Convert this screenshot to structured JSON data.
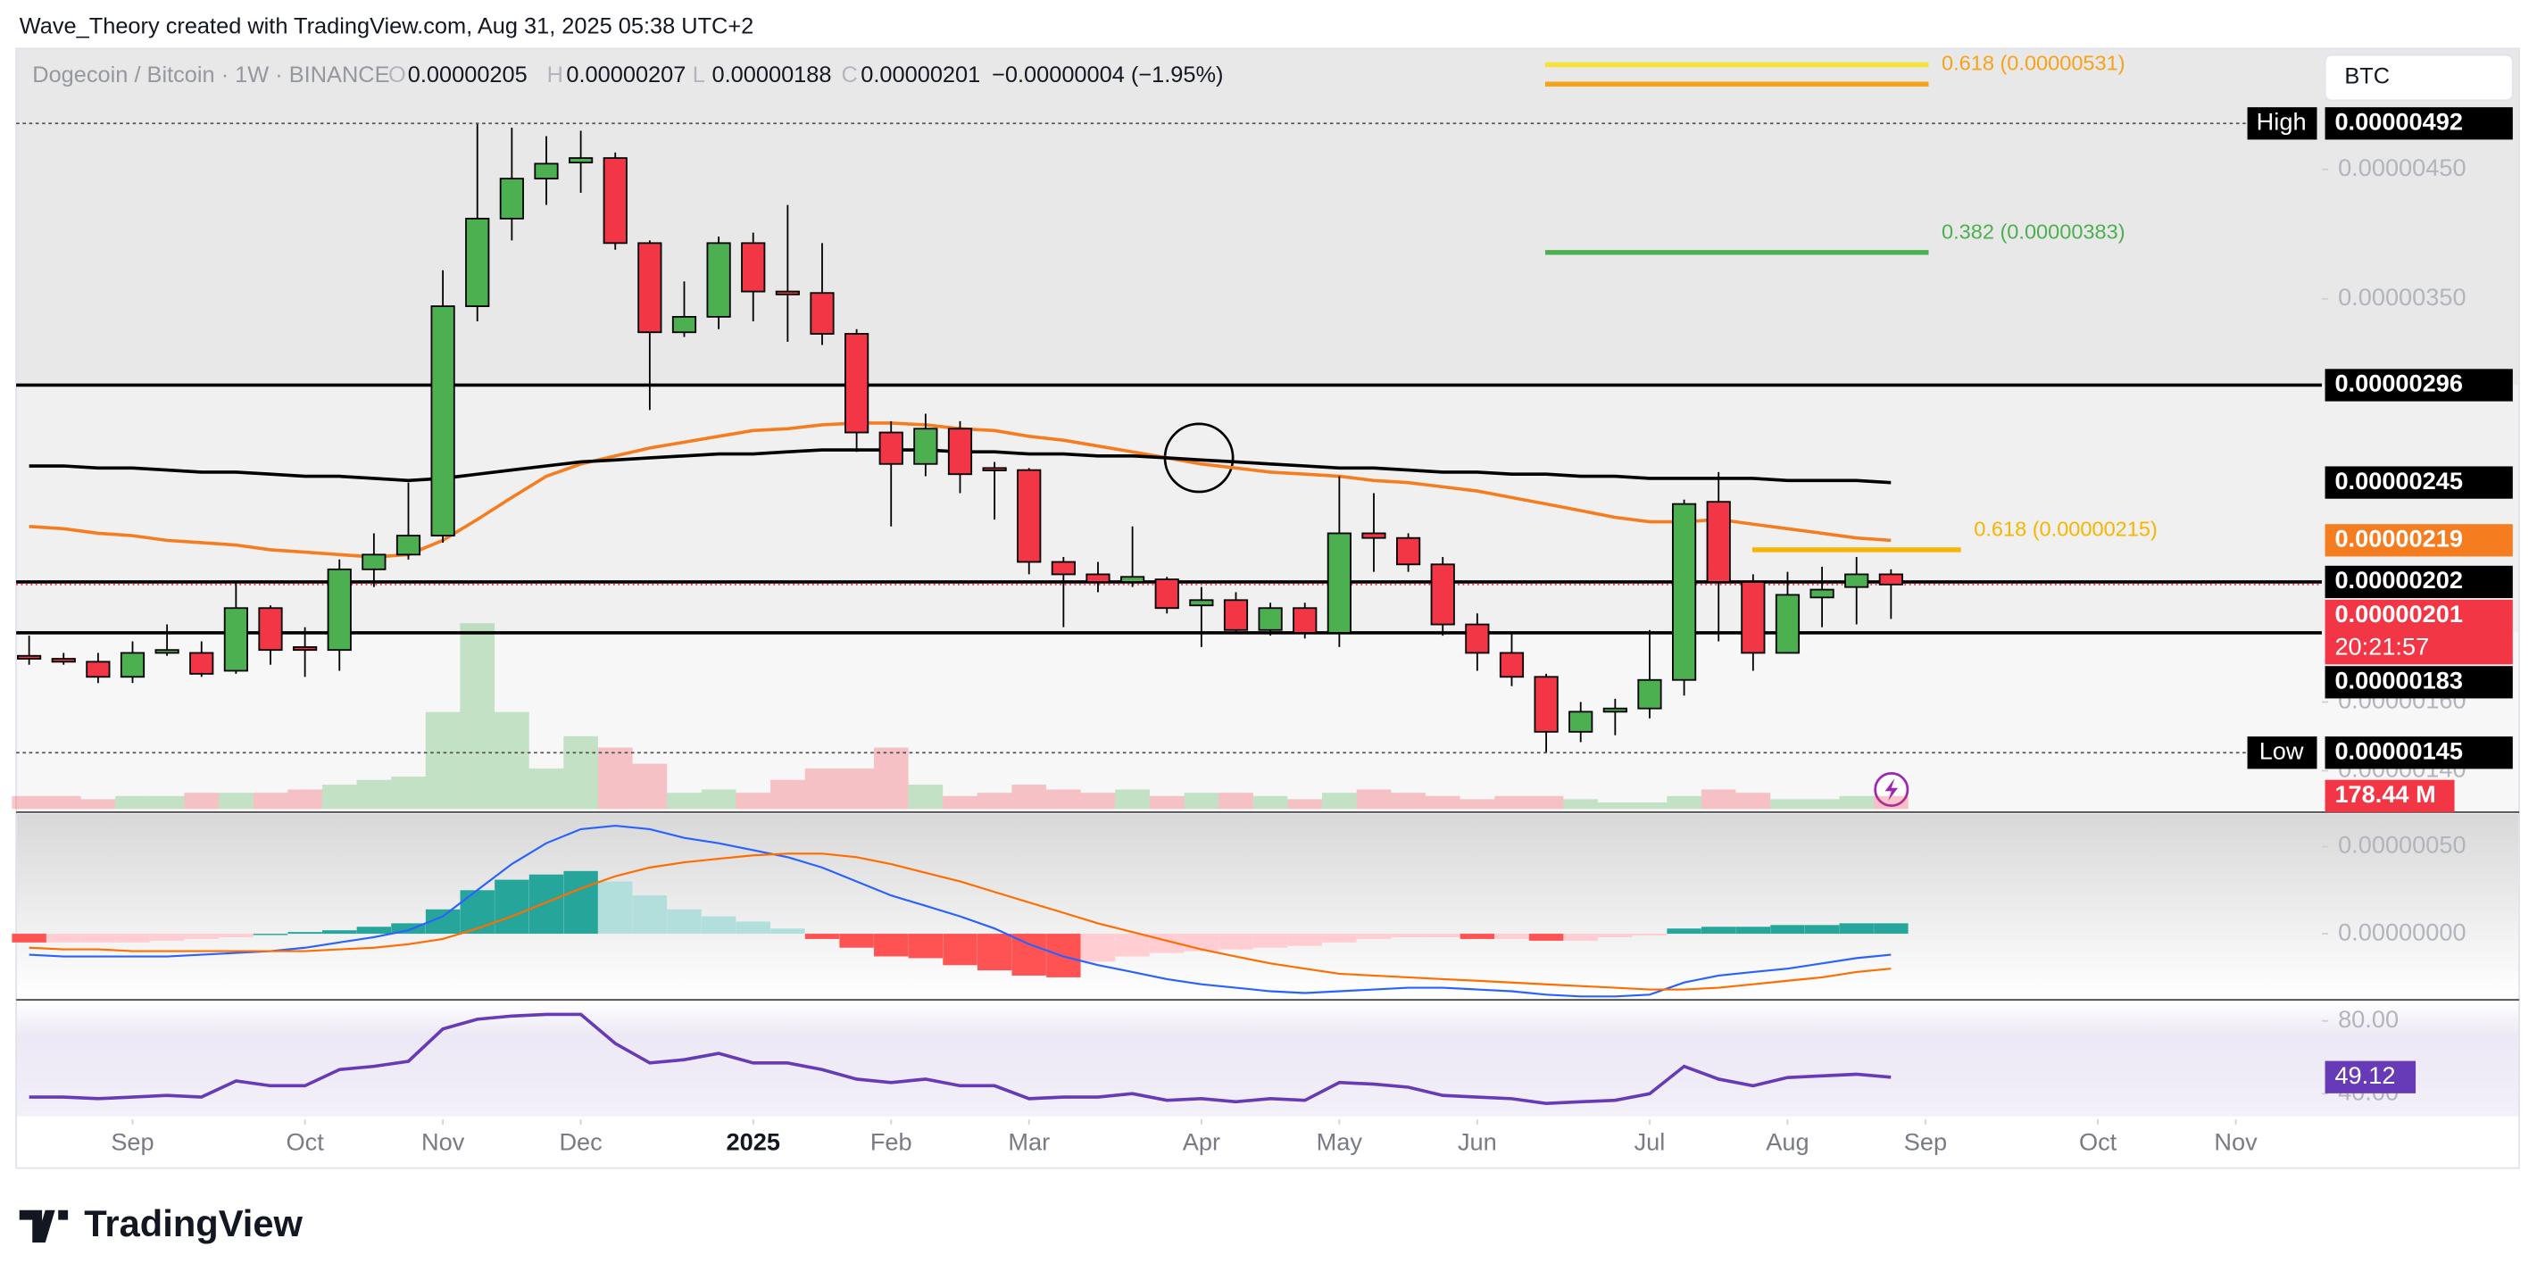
{
  "chart_data": {
    "type": "candlestick",
    "title": "Dogecoin / Bitcoin · 1W · BINANCE",
    "credit": "Wave_Theory created with TradingView.com, Aug 31, 2025 05:38 UTC+2",
    "legend_keys": [
      "O",
      "H",
      "L",
      "C"
    ],
    "change_label": "−0.00000004 (−1.95%)",
    "currency": "BTC",
    "watermark": "TradingView",
    "log_scale": true,
    "categories": [
      null,
      null,
      null,
      null,
      null,
      null,
      null,
      null,
      null,
      null,
      null,
      null,
      null,
      null,
      null,
      null,
      null,
      null,
      null,
      null,
      null,
      null,
      null,
      null,
      null,
      null,
      null,
      null,
      null,
      null,
      null,
      null,
      null,
      null,
      null,
      null,
      null,
      null,
      null,
      null,
      null,
      null,
      null,
      null,
      null,
      null,
      null,
      null,
      null,
      null,
      null,
      null,
      null,
      null,
      null
    ],
    "open": [
      1.75e-06,
      1.74e-06,
      1.73e-06,
      1.68e-06,
      1.76e-06,
      1.76e-06,
      1.7e-06,
      1.92e-06,
      1.78e-06,
      1.77e-06,
      2.07e-06,
      2.13e-06,
      2.21e-06,
      3.45e-06,
      4.09e-06,
      4.42e-06,
      4.56e-06,
      4.6e-06,
      3.9e-06,
      3.28e-06,
      3.38e-06,
      3.9e-06,
      3.55e-06,
      3.54e-06,
      3.27e-06,
      2.7e-06,
      2.54e-06,
      2.72e-06,
      2.52e-06,
      2.51e-06,
      2.1e-06,
      2.05e-06,
      2.02e-06,
      2.03e-06,
      1.93e-06,
      1.95e-06,
      1.84e-06,
      1.92e-06,
      1.83e-06,
      2.22e-06,
      2.2e-06,
      2.09e-06,
      1.86e-06,
      1.76e-06,
      1.68e-06,
      1.51e-06,
      1.57e-06,
      1.58e-06,
      1.67e-06,
      2.36e-06,
      2.02e-06,
      1.76e-06,
      1.96e-06,
      2e-06,
      2.05e-06
    ],
    "high": [
      1.82e-06,
      1.76e-06,
      1.76e-06,
      1.8e-06,
      1.86e-06,
      1.8e-06,
      2.02e-06,
      1.93e-06,
      1.85e-06,
      2.11e-06,
      2.22e-06,
      2.45e-06,
      3.7e-06,
      4.92e-06,
      4.88e-06,
      4.8e-06,
      4.85e-06,
      4.65e-06,
      3.92e-06,
      3.62e-06,
      3.95e-06,
      3.98e-06,
      4.2e-06,
      3.9e-06,
      3.3e-06,
      2.76e-06,
      2.8e-06,
      2.76e-06,
      2.55e-06,
      2.52e-06,
      2.12e-06,
      2.1e-06,
      2.25e-06,
      2.04e-06,
      2e-06,
      1.98e-06,
      1.94e-06,
      1.94e-06,
      2.48e-06,
      2.4e-06,
      2.22e-06,
      2.12e-06,
      1.9e-06,
      1.83e-06,
      1.69e-06,
      1.6e-06,
      1.61e-06,
      1.84e-06,
      2.37e-06,
      2.5e-06,
      2.05e-06,
      2.06e-06,
      2.08e-06,
      2.12e-06,
      2.07e-06
    ],
    "low": [
      1.72e-06,
      1.72e-06,
      1.66e-06,
      1.66e-06,
      1.75e-06,
      1.68e-06,
      1.69e-06,
      1.72e-06,
      1.68e-06,
      1.7e-06,
      2e-06,
      2.11e-06,
      2.18e-06,
      3.35e-06,
      3.92e-06,
      4.2e-06,
      4.3e-06,
      3.85e-06,
      2.82e-06,
      3.25e-06,
      3.3e-06,
      3.35e-06,
      3.22e-06,
      3.2e-06,
      2.6e-06,
      2.25e-06,
      2.48e-06,
      2.4e-06,
      2.28e-06,
      2.05e-06,
      1.85e-06,
      1.98e-06,
      2e-06,
      1.9e-06,
      1.78e-06,
      1.83e-06,
      1.82e-06,
      1.81e-06,
      1.78e-06,
      2.06e-06,
      2.06e-06,
      1.82e-06,
      1.7e-06,
      1.65e-06,
      1.45e-06,
      1.48e-06,
      1.5e-06,
      1.55e-06,
      1.62e-06,
      1.8e-06,
      1.7e-06,
      1.76e-06,
      1.85e-06,
      1.86e-06,
      1.88e-06
    ],
    "close": [
      1.74e-06,
      1.73e-06,
      1.68e-06,
      1.76e-06,
      1.77e-06,
      1.69e-06,
      1.92e-06,
      1.77e-06,
      1.77e-06,
      2.07e-06,
      2.13e-06,
      2.21e-06,
      3.45e-06,
      4.09e-06,
      4.42e-06,
      4.55e-06,
      4.6e-06,
      3.9e-06,
      3.28e-06,
      3.38e-06,
      3.9e-06,
      3.55e-06,
      3.53e-06,
      3.27e-06,
      2.7e-06,
      2.54e-06,
      2.72e-06,
      2.49e-06,
      2.51e-06,
      2.1e-06,
      2.05e-06,
      2.02e-06,
      2.04e-06,
      1.92e-06,
      1.95e-06,
      1.84e-06,
      1.92e-06,
      1.83e-06,
      2.22e-06,
      2.2e-06,
      2.09e-06,
      1.86e-06,
      1.76e-06,
      1.68e-06,
      1.51e-06,
      1.57e-06,
      1.58e-06,
      1.67e-06,
      2.35e-06,
      2.02e-06,
      1.76e-06,
      1.97e-06,
      1.99e-06,
      2.05e-06,
      2.01e-06
    ],
    "up_color": "#4caf50",
    "down_color": "#f23645",
    "ylim": [
      1.3e-06,
      5.69e-06
    ],
    "yticks": [
      {
        "value": 4.5e-06,
        "label": "0.00000450"
      },
      {
        "value": 3.5e-06,
        "label": "0.00000350"
      },
      {
        "value": 1.6e-06,
        "label": "0.00000160"
      },
      {
        "value": 1.4e-06,
        "label": "0.00000140"
      }
    ],
    "xticks": [
      {
        "value": 3,
        "label": "Sep"
      },
      {
        "value": 8,
        "label": "Oct"
      },
      {
        "value": 12,
        "label": "Nov"
      },
      {
        "value": 16,
        "label": "Dec"
      },
      {
        "value": 21,
        "label": "2025"
      },
      {
        "value": 25,
        "label": "Feb"
      },
      {
        "value": 29,
        "label": "Mar"
      },
      {
        "value": 34,
        "label": "Apr"
      },
      {
        "value": 38,
        "label": "May"
      },
      {
        "value": 42,
        "label": "Jun"
      },
      {
        "value": 47,
        "label": "Jul"
      },
      {
        "value": 51,
        "label": "Aug"
      },
      {
        "value": 55,
        "label": "Sep"
      },
      {
        "value": 60,
        "label": "Oct"
      },
      {
        "value": 64,
        "label": "Nov"
      }
    ],
    "moving_averages": [
      {
        "color": "#f57c1f",
        "values": [
          2.25e-06,
          2.24e-06,
          2.22e-06,
          2.21e-06,
          2.19e-06,
          2.18e-06,
          2.17e-06,
          2.15e-06,
          2.14e-06,
          2.13e-06,
          2.12e-06,
          2.13e-06,
          2.19e-06,
          2.28e-06,
          2.38e-06,
          2.48e-06,
          2.54e-06,
          2.58e-06,
          2.62e-06,
          2.65e-06,
          2.68e-06,
          2.71e-06,
          2.72e-06,
          2.74e-06,
          2.75e-06,
          2.75e-06,
          2.74e-06,
          2.72e-06,
          2.71e-06,
          2.68e-06,
          2.66e-06,
          2.63e-06,
          2.6e-06,
          2.57e-06,
          2.54e-06,
          2.52e-06,
          2.5e-06,
          2.49e-06,
          2.48e-06,
          2.46e-06,
          2.45e-06,
          2.43e-06,
          2.41e-06,
          2.38e-06,
          2.35e-06,
          2.32e-06,
          2.29e-06,
          2.27e-06,
          2.27e-06,
          2.28e-06,
          2.26e-06,
          2.24e-06,
          2.22e-06,
          2.2e-06,
          2.19e-06
        ]
      },
      {
        "color": "#000000",
        "values": [
          2.53e-06,
          2.53e-06,
          2.52e-06,
          2.52e-06,
          2.51e-06,
          2.5e-06,
          2.5e-06,
          2.49e-06,
          2.48e-06,
          2.48e-06,
          2.47e-06,
          2.46e-06,
          2.47e-06,
          2.49e-06,
          2.51e-06,
          2.53e-06,
          2.55e-06,
          2.56e-06,
          2.57e-06,
          2.58e-06,
          2.59e-06,
          2.59e-06,
          2.6e-06,
          2.61e-06,
          2.61e-06,
          2.61e-06,
          2.61e-06,
          2.6e-06,
          2.6e-06,
          2.59e-06,
          2.59e-06,
          2.58e-06,
          2.58e-06,
          2.57e-06,
          2.56e-06,
          2.55e-06,
          2.54e-06,
          2.53e-06,
          2.52e-06,
          2.52e-06,
          2.51e-06,
          2.5e-06,
          2.5e-06,
          2.49e-06,
          2.49e-06,
          2.48e-06,
          2.48e-06,
          2.47e-06,
          2.47e-06,
          2.47e-06,
          2.47e-06,
          2.46e-06,
          2.46e-06,
          2.46e-06,
          2.45e-06
        ]
      }
    ],
    "levels": [
      2.96e-06,
      2.02e-06,
      1.83e-06
    ],
    "high_label": "High",
    "low_label": "Low",
    "countdown": "20:21:57",
    "fibs": [
      {
        "label": "0.618 (0.00000531)",
        "value": 5.31e-06,
        "color": "#f7a21b"
      },
      {
        "label": "0.382 (0.00000383)",
        "value": 3.83e-06,
        "color": "#4caf50"
      },
      {
        "label": "0.618 (0.00000215)",
        "value": 2.15e-06,
        "color": "#f7b500"
      }
    ],
    "volume": {
      "ylim": [
        0,
        10500
      ],
      "values": [
        178,
        178,
        134,
        178,
        178,
        223,
        223,
        223,
        268,
        335,
        401,
        446,
        1338,
        2565,
        1338,
        558,
        1004,
        847,
        624,
        223,
        268,
        223,
        401,
        558,
        558,
        847,
        335,
        178,
        223,
        335,
        268,
        223,
        268,
        178,
        223,
        223,
        178,
        134,
        223,
        268,
        223,
        178,
        134,
        178,
        178,
        134,
        89,
        89,
        178,
        268,
        223,
        134,
        134,
        178,
        178.44
      ],
      "value_labels": [
        null,
        null,
        null,
        null,
        null,
        null,
        null,
        null,
        null,
        null,
        null,
        null,
        null,
        null,
        null,
        null,
        null,
        null,
        null,
        null,
        null,
        null,
        null,
        null,
        null,
        null,
        null,
        null,
        null,
        null,
        null,
        null,
        null,
        null,
        null,
        null,
        null,
        null,
        null,
        null,
        null,
        null,
        null,
        null,
        null,
        null,
        null,
        null,
        null,
        null,
        null,
        null,
        null,
        null,
        "178.44 M"
      ]
    },
    "macd": {
      "ylim": [
        -3.7e-07,
        6.7e-07
      ],
      "yticks": [
        {
          "value": 5e-07,
          "label": "0.00000050"
        },
        {
          "value": 0,
          "label": "0.00000000"
        }
      ],
      "histogram": [
        -5e-08,
        -5e-08,
        -5e-08,
        -5e-08,
        -4e-08,
        -3e-08,
        -2e-08,
        0,
        1e-08,
        2e-08,
        4e-08,
        6e-08,
        1.4e-07,
        2.5e-07,
        3.1e-07,
        3.4e-07,
        3.6e-07,
        3e-07,
        2.2e-07,
        1.4e-07,
        1e-07,
        7e-08,
        3e-08,
        -3e-08,
        -8e-08,
        -1.3e-07,
        -1.4e-07,
        -1.8e-07,
        -2.1e-07,
        -2.4e-07,
        -2.5e-07,
        -1.6e-07,
        -1.3e-07,
        -1.1e-07,
        -1e-07,
        -9e-08,
        -8e-08,
        -7e-08,
        -5e-08,
        -3e-08,
        -2e-08,
        -2e-08,
        -3e-08,
        -3e-08,
        -4e-08,
        -4e-08,
        -2e-08,
        -1e-08,
        3e-08,
        4e-08,
        4e-08,
        5e-08,
        5e-08,
        6e-08,
        6e-08
      ],
      "series": [
        {
          "color": "#2962ff",
          "values": [
            -1.2e-07,
            -1.3e-07,
            -1.3e-07,
            -1.3e-07,
            -1.3e-07,
            -1.2e-07,
            -1.1e-07,
            -1e-07,
            -8e-08,
            -5e-08,
            -2e-08,
            2e-08,
            1e-07,
            2.5e-07,
            4e-07,
            5.2e-07,
            6e-07,
            6.2e-07,
            6e-07,
            5.5e-07,
            5.2e-07,
            4.8e-07,
            4.4e-07,
            3.8e-07,
            3e-07,
            2.2e-07,
            1.6e-07,
            1e-07,
            3e-08,
            -6e-08,
            -1.3e-07,
            -1.8e-07,
            -2.2e-07,
            -2.6e-07,
            -2.9e-07,
            -3.1e-07,
            -3.3e-07,
            -3.4e-07,
            -3.3e-07,
            -3.2e-07,
            -3.1e-07,
            -3.1e-07,
            -3.2e-07,
            -3.3e-07,
            -3.5e-07,
            -3.6e-07,
            -3.6e-07,
            -3.5e-07,
            -2.8e-07,
            -2.4e-07,
            -2.2e-07,
            -2e-07,
            -1.7e-07,
            -1.4e-07,
            -1.2e-07
          ]
        },
        {
          "color": "#ff6d00",
          "values": [
            -8e-08,
            -9e-08,
            -9e-08,
            -1e-07,
            -1e-07,
            -1e-07,
            -1e-07,
            -1e-07,
            -1e-07,
            -9e-08,
            -8e-08,
            -6e-08,
            -3e-08,
            3e-08,
            1e-07,
            1.8e-07,
            2.6e-07,
            3.3e-07,
            3.8e-07,
            4.1e-07,
            4.3e-07,
            4.5e-07,
            4.6e-07,
            4.6e-07,
            4.4e-07,
            4e-07,
            3.5e-07,
            3e-07,
            2.4e-07,
            1.8e-07,
            1.2e-07,
            6e-08,
            1e-08,
            -4e-08,
            -9e-08,
            -1.3e-07,
            -1.7e-07,
            -2e-07,
            -2.3e-07,
            -2.4e-07,
            -2.5e-07,
            -2.6e-07,
            -2.7e-07,
            -2.8e-07,
            -2.9e-07,
            -3e-07,
            -3.1e-07,
            -3.2e-07,
            -3.2e-07,
            -3.1e-07,
            -2.9e-07,
            -2.7e-07,
            -2.5e-07,
            -2.2e-07,
            -2e-07
          ]
        }
      ]
    },
    "rsi": {
      "ylim": [
        27.6,
        89.8
      ],
      "color": "#673ab7",
      "yticks": [
        {
          "value": 80,
          "label": "80.00"
        },
        {
          "value": 40,
          "label": "40.00"
        }
      ],
      "values": [
        38.2,
        38.2,
        37.3,
        38.2,
        39.1,
        38.2,
        47.1,
        44.4,
        44.4,
        53.3,
        55.1,
        57.8,
        75.6,
        80.9,
        82.7,
        83.6,
        83.6,
        67.6,
        56.9,
        58.7,
        62.2,
        56.9,
        56.9,
        53.3,
        48.0,
        46.2,
        48.0,
        44.4,
        44.4,
        37.3,
        38.2,
        38.2,
        40,
        36.4,
        37.3,
        35.6,
        37.3,
        36.4,
        46.2,
        45.3,
        43.6,
        39.1,
        38.2,
        37.3,
        34.7,
        35.6,
        36.4,
        40,
        55.1,
        48.0,
        44.4,
        48.9,
        49.8,
        50.7,
        49.12
      ]
    }
  }
}
